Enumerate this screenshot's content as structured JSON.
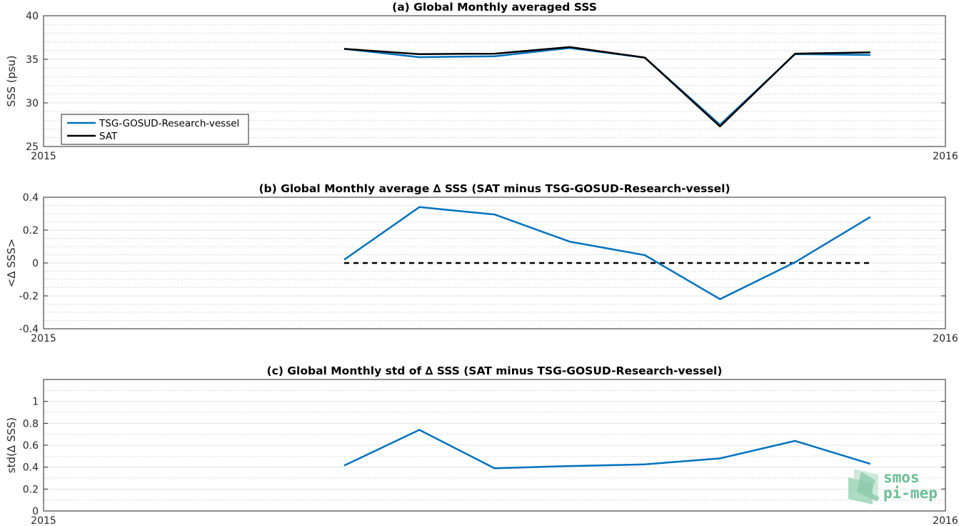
{
  "chart_data": [
    {
      "type": "line",
      "title": "(a) Global Monthly averaged SSS",
      "ylabel": "SSS (psu)",
      "xlabel": "",
      "xlim": [
        "2015",
        "2016"
      ],
      "x_tick_labels": [
        "2015",
        "2016"
      ],
      "ylim": [
        25,
        40
      ],
      "y_ticks": [
        25,
        30,
        35,
        40
      ],
      "y_minor_grid_step": 1,
      "grid": true,
      "legend": {
        "placement": "bottom-left",
        "entries": [
          "TSG-GOSUD-Research-vessel",
          "SAT"
        ]
      },
      "x_months": [
        4,
        5,
        6,
        7,
        8,
        9,
        10,
        11
      ],
      "series": [
        {
          "name": "TSG-GOSUD-Research-vessel",
          "color": "#0072bd",
          "values": [
            36.2,
            35.25,
            35.35,
            36.3,
            35.2,
            27.5,
            35.6,
            35.5
          ]
        },
        {
          "name": "SAT",
          "color": "#000000",
          "values": [
            36.2,
            35.6,
            35.65,
            36.4,
            35.2,
            27.3,
            35.65,
            35.8
          ]
        }
      ]
    },
    {
      "type": "line",
      "title": "(b) Global Monthly average ∆ SSS (SAT minus TSG-GOSUD-Research-vessel)",
      "ylabel": "<∆ SSS>",
      "xlabel": "",
      "xlim": [
        "2015",
        "2016"
      ],
      "x_tick_labels": [
        "2015",
        "2016"
      ],
      "ylim": [
        -0.4,
        0.4
      ],
      "y_ticks": [
        -0.4,
        -0.2,
        0,
        0.2,
        0.4
      ],
      "y_minor_grid_step": 0.05,
      "grid": true,
      "reference_line": {
        "y": 0,
        "style": "dashed",
        "color": "#000000"
      },
      "x_months": [
        4,
        5,
        6,
        7,
        8,
        9,
        10,
        11
      ],
      "series": [
        {
          "color": "#0072bd",
          "values": [
            0.02,
            0.34,
            0.295,
            0.13,
            0.048,
            -0.22,
            0.005,
            0.28
          ]
        }
      ]
    },
    {
      "type": "line",
      "title": "(c) Global Monthly std of ∆ SSS (SAT minus TSG-GOSUD-Research-vessel)",
      "ylabel": "std(∆ SSS)",
      "xlabel": "",
      "xlim": [
        "2015",
        "2016"
      ],
      "x_tick_labels": [
        "2015",
        "2016"
      ],
      "ylim": [
        0,
        1.2
      ],
      "y_ticks": [
        0,
        0.2,
        0.4,
        0.6,
        0.8,
        1
      ],
      "y_minor_grid_step": 0.1,
      "grid": true,
      "x_months": [
        4,
        5,
        6,
        7,
        8,
        9,
        10,
        11
      ],
      "series": [
        {
          "color": "#0072bd",
          "values": [
            0.415,
            0.74,
            0.39,
            0.41,
            0.425,
            0.48,
            0.64,
            0.43
          ]
        }
      ]
    }
  ],
  "watermark": {
    "line1": "smos",
    "line2": "pi-mep",
    "color": "#6bbf96"
  }
}
